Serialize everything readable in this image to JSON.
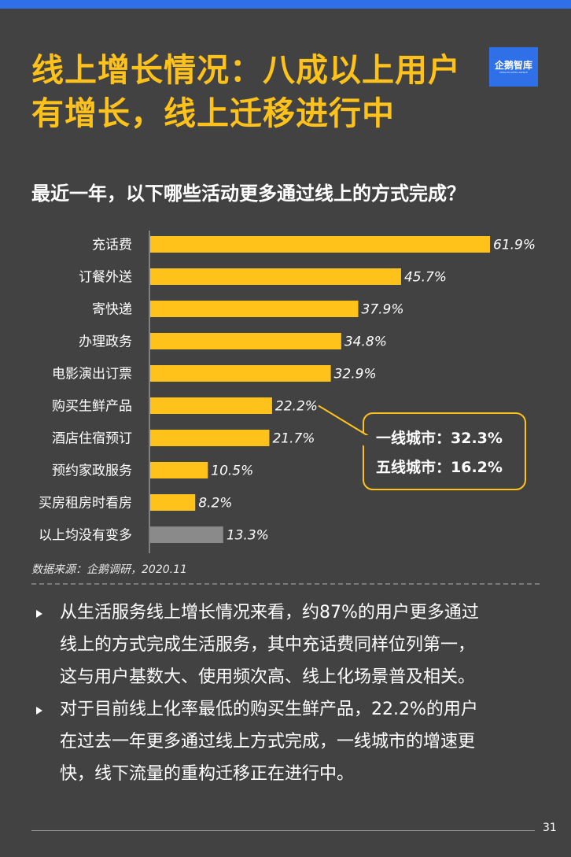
{
  "header": {
    "title_line1": "线上增长情况：八成以上用户",
    "title_line2": "有增长，线上迁移进行中",
    "logo_text": "企鹅智库",
    "logo_sub": "PENGUIN INTELLIGENCE"
  },
  "chart_data": {
    "type": "bar",
    "orientation": "horizontal",
    "title": "最近一年，以下哪些活动更多通过线上的方式完成？",
    "categories": [
      "充话费",
      "订餐外送",
      "寄快递",
      "办理政务",
      "电影演出订票",
      "购买生鲜产品",
      "酒店住宿预订",
      "预约家政服务",
      "买房租房时看房",
      "以上均没有变多"
    ],
    "values": [
      61.9,
      45.7,
      37.9,
      34.8,
      32.9,
      22.2,
      21.7,
      10.5,
      8.2,
      13.3
    ],
    "value_labels": [
      "61.9%",
      "45.7%",
      "37.9%",
      "34.8%",
      "32.9%",
      "22.2%",
      "21.7%",
      "10.5%",
      "8.2%",
      "13.3%"
    ],
    "bar_colors": [
      "#ffc21a",
      "#ffc21a",
      "#ffc21a",
      "#ffc21a",
      "#ffc21a",
      "#ffc21a",
      "#ffc21a",
      "#ffc21a",
      "#ffc21a",
      "#8a8a8a"
    ],
    "xlim": [
      0,
      61.9
    ],
    "annotation": {
      "target_category": "购买生鲜产品",
      "lines": [
        "一线城市：32.3%",
        "五线城市：16.2%"
      ],
      "border_color": "#ffc21a"
    },
    "source": "数据来源：企鹅调研，2020.11"
  },
  "bullets": [
    "从生活服务线上增长情况来看，约87%的用户更多通过线上的方式完成生活服务，其中充话费同样位列第一，这与用户基数大、使用频次高、线上化场景普及相关。",
    "对于目前线上化率最低的购买生鲜产品，22.2%的用户在过去一年更多通过线上方式完成，一线城市的增速更快，线下流量的重构迁移正在进行中。"
  ],
  "bullet_lines": [
    [
      "从生活服务线上增长情况来看，约87%的用户更多通过",
      "线上的方式完成生活服务，其中充话费同样位列第一，",
      "这与用户基数大、使用频次高、线上化场景普及相关。"
    ],
    [
      "对于目前线上化率最低的购买生鲜产品，22.2%的用户",
      "在过去一年更多通过线上方式完成，一线城市的增速更",
      "快，线下流量的重构迁移正在进行中。"
    ]
  ],
  "page_number": "31",
  "colors": {
    "background": "#424242",
    "accent": "#ffc21a",
    "brand_blue": "#2f6fe8",
    "gray_bar": "#8a8a8a"
  }
}
